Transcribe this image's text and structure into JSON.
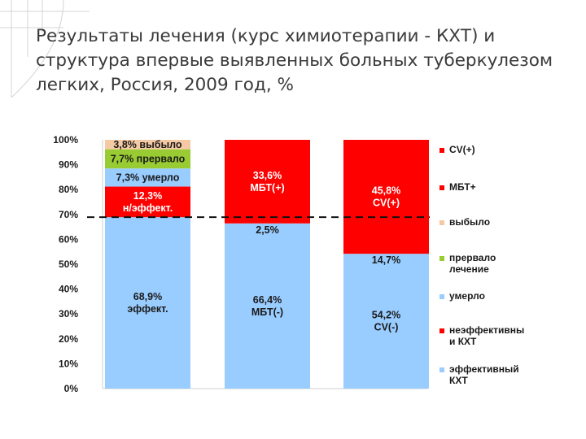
{
  "slide": {
    "title": "Результаты лечения (курс химиотерапии - КХТ) и структура впервые выявленных больных туберкулезом легких, Россия, 2009 год, %"
  },
  "colors": {
    "red": "#ff0000",
    "blue": "#99ccff",
    "green": "#99cc33",
    "peach": "#f5c9a3",
    "corner_lines": "#d4d4d4"
  },
  "chart_data": {
    "type": "bar",
    "stacked": true,
    "ylim": [
      0,
      100
    ],
    "y_ticks": [
      "0%",
      "10%",
      "20%",
      "30%",
      "40%",
      "50%",
      "60%",
      "70%",
      "80%",
      "90%",
      "100%"
    ],
    "reference_line": {
      "y": 68.9,
      "style": "dashed"
    },
    "bars": [
      {
        "segments": [
          {
            "value": 68.9,
            "color": "#99ccff",
            "label": [
              "68,9%",
              "эффект."
            ],
            "label_dark": true
          },
          {
            "value": 12.3,
            "color": "#ff0000",
            "label": [
              "12,3%",
              "н/эффект."
            ],
            "label_dark": false
          },
          {
            "value": 7.3,
            "color": "#99ccff",
            "label": [
              "7,3% умерло"
            ],
            "label_dark": true
          },
          {
            "value": 7.7,
            "color": "#99cc33",
            "label": [
              "7,7% прервало"
            ],
            "label_dark": true
          },
          {
            "value": 3.8,
            "color": "#f5c9a3",
            "label": [
              "3,8% выбыло"
            ],
            "label_dark": true
          }
        ]
      },
      {
        "segments": [
          {
            "value": 66.4,
            "color": "#99ccff",
            "label": [
              "66,4%",
              "МБТ(-)"
            ],
            "label_dark": true
          },
          {
            "value": 33.6,
            "color": "#ff0000",
            "label": [
              "33,6%",
              "МБТ(+)"
            ],
            "label_dark": false
          }
        ],
        "annotation": {
          "text": "2,5%",
          "y": 66.4
        }
      },
      {
        "segments": [
          {
            "value": 54.2,
            "color": "#99ccff",
            "label": [
              "54,2%",
              "CV(-)"
            ],
            "label_dark": true
          },
          {
            "value": 45.8,
            "color": "#ff0000",
            "label": [
              "45,8%",
              "CV(+)"
            ],
            "label_dark": false
          }
        ],
        "annotation": {
          "text": "14,7%",
          "y": 54.2
        }
      }
    ],
    "legend": {
      "position": "right",
      "items": [
        {
          "label": [
            "CV(+)"
          ],
          "color": "#ff0000"
        },
        {
          "label": [
            "МБТ+"
          ],
          "color": "#ff0000"
        },
        {
          "label": [
            "выбыло"
          ],
          "color": "#f5c9a3"
        },
        {
          "label": [
            "прервало",
            "лечение"
          ],
          "color": "#99cc33"
        },
        {
          "label": [
            "умерло"
          ],
          "color": "#99ccff"
        },
        {
          "label": [
            "неэффективны",
            "и КХТ"
          ],
          "color": "#ff0000"
        },
        {
          "label": [
            "эффективный",
            "КХТ"
          ],
          "color": "#99ccff"
        }
      ]
    }
  }
}
